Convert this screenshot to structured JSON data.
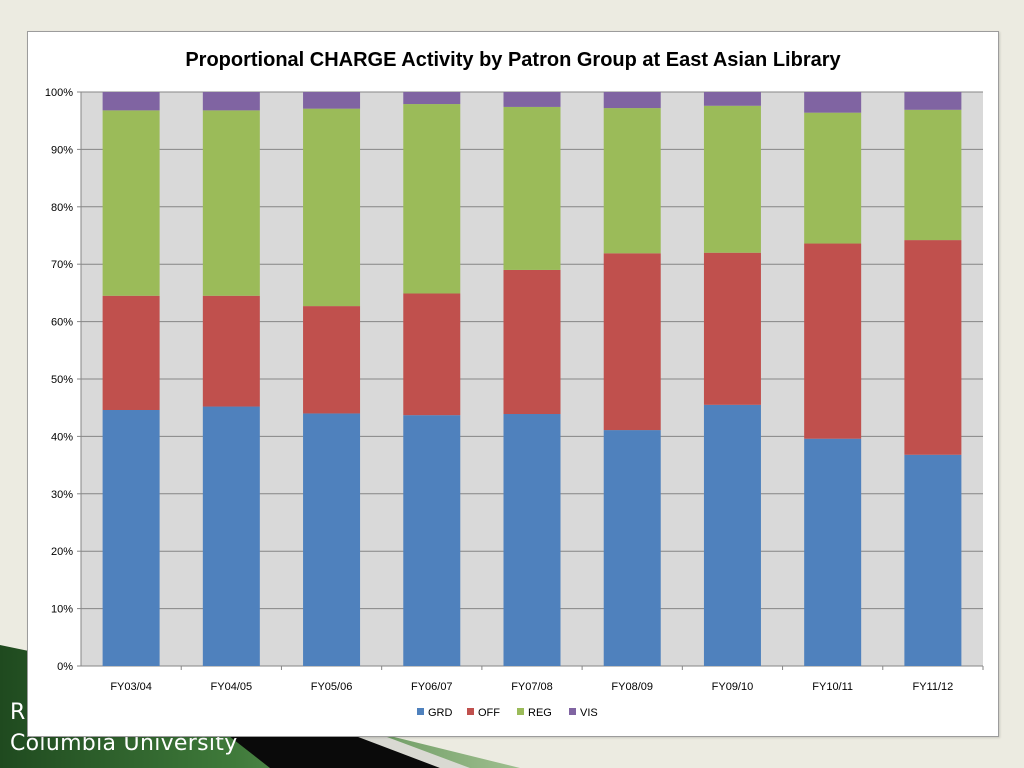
{
  "footer": {
    "line1": "R",
    "line2": "Columbia University"
  },
  "colors": {
    "GRD": "#4f81bd",
    "OFF": "#c0504d",
    "REG": "#9bbb59",
    "VIS": "#8064a2",
    "plot_background": "#d9d9d9",
    "gridline": "#868686"
  },
  "chart_data": {
    "type": "bar",
    "stacked": true,
    "percent": true,
    "title": "Proportional CHARGE Activity by Patron Group at East Asian Library",
    "xlabel": "",
    "ylabel": "",
    "ylim": [
      0,
      100
    ],
    "yticks": [
      "0%",
      "10%",
      "20%",
      "30%",
      "40%",
      "50%",
      "60%",
      "70%",
      "80%",
      "90%",
      "100%"
    ],
    "grid": true,
    "legend_position": "bottom",
    "categories": [
      "FY03/04",
      "FY04/05",
      "FY05/06",
      "FY06/07",
      "FY07/08",
      "FY08/09",
      "FY09/10",
      "FY10/11",
      "FY11/12"
    ],
    "series": [
      {
        "name": "GRD",
        "values": [
          44.6,
          45.2,
          44.0,
          43.7,
          43.9,
          41.1,
          45.5,
          39.6,
          36.8
        ]
      },
      {
        "name": "OFF",
        "values": [
          19.9,
          19.3,
          18.7,
          21.2,
          25.1,
          30.8,
          26.5,
          34.0,
          37.4
        ]
      },
      {
        "name": "REG",
        "values": [
          32.3,
          32.3,
          34.4,
          33.0,
          28.4,
          25.3,
          25.6,
          22.8,
          22.7
        ]
      },
      {
        "name": "VIS",
        "values": [
          3.2,
          3.2,
          2.9,
          2.1,
          2.6,
          2.8,
          2.4,
          3.6,
          3.1
        ]
      }
    ]
  }
}
